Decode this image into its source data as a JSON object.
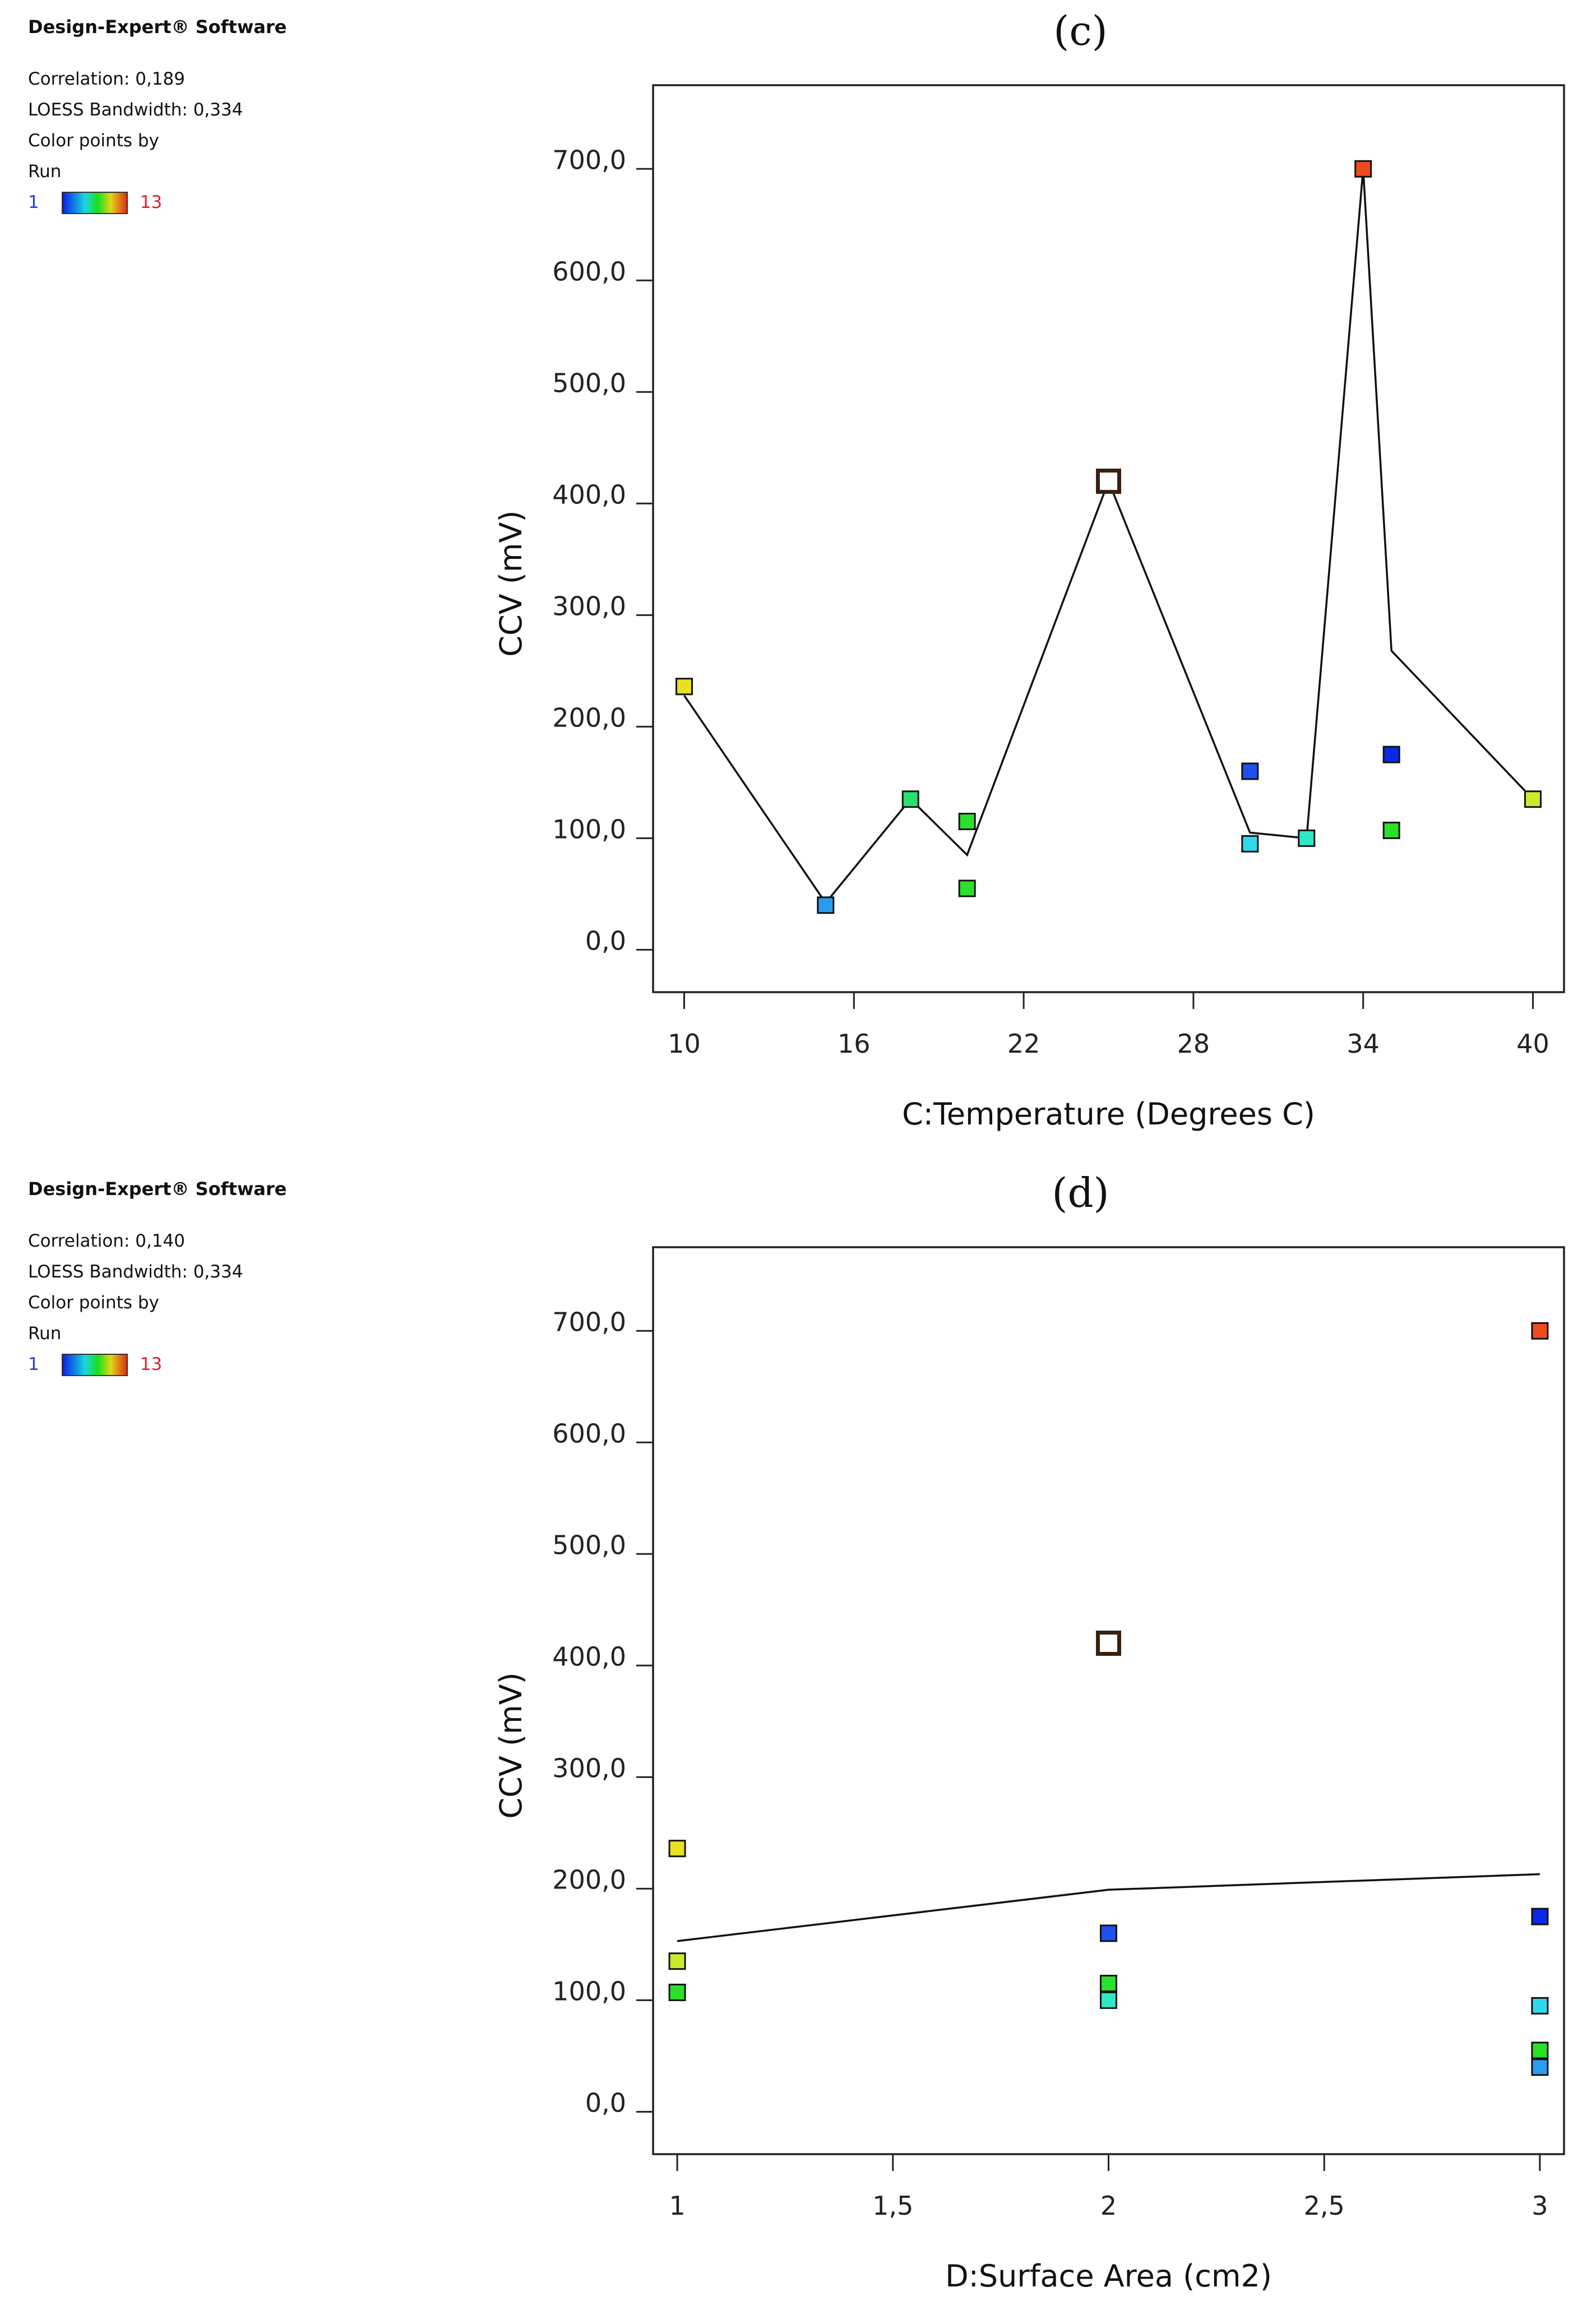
{
  "software_label": "Design-Expert® Software",
  "panels": [
    {
      "correlation": "Correlation: 0,189",
      "bandwidth": "LOESS Bandwidth: 0,334",
      "color_by": "Color points by",
      "color_var": "Run",
      "run_min": "1",
      "run_max": "13"
    },
    {
      "correlation": "Correlation: 0,140",
      "bandwidth": "LOESS Bandwidth: 0,334",
      "color_by": "Color points by",
      "color_var": "Run",
      "run_min": "1",
      "run_max": "13"
    }
  ],
  "chart_data": [
    {
      "type": "scatter",
      "title": "(c)",
      "xlabel": "C:Temperature (Degrees C)",
      "ylabel": "CCV (mV)",
      "xlim": [
        8.9,
        41.1
      ],
      "ylim": [
        -38,
        775
      ],
      "xticks": [
        10,
        16,
        22,
        28,
        34,
        40
      ],
      "xtick_labels": [
        "10",
        "16",
        "22",
        "28",
        "34",
        "40"
      ],
      "yticks": [
        0,
        100,
        200,
        300,
        400,
        500,
        600,
        700
      ],
      "ytick_labels": [
        "0,0",
        "100,0",
        "200,0",
        "300,0",
        "400,0",
        "500,0",
        "600,0",
        "700,0"
      ],
      "points": [
        {
          "x": 10,
          "y": 236,
          "color": "#e8e020"
        },
        {
          "x": 15,
          "y": 40,
          "color": "#2a9cf0"
        },
        {
          "x": 18,
          "y": 135,
          "color": "#28e070"
        },
        {
          "x": 20,
          "y": 115,
          "color": "#2ae02a"
        },
        {
          "x": 20,
          "y": 55,
          "color": "#2ae02a"
        },
        {
          "x": 25,
          "y": 420,
          "color": "#ffffff",
          "design_point": true
        },
        {
          "x": 30,
          "y": 160,
          "color": "#1e50f0"
        },
        {
          "x": 30,
          "y": 95,
          "color": "#30d8ee"
        },
        {
          "x": 32,
          "y": 100,
          "color": "#30e8c8"
        },
        {
          "x": 34,
          "y": 700,
          "color": "#f04a1c"
        },
        {
          "x": 35,
          "y": 175,
          "color": "#0a28e8"
        },
        {
          "x": 35,
          "y": 107,
          "color": "#2ae02a"
        },
        {
          "x": 40,
          "y": 135,
          "color": "#c8ec2a"
        }
      ],
      "loess": [
        {
          "x": 10,
          "y": 228
        },
        {
          "x": 15,
          "y": 42
        },
        {
          "x": 18,
          "y": 135
        },
        {
          "x": 20,
          "y": 85
        },
        {
          "x": 25,
          "y": 420
        },
        {
          "x": 30,
          "y": 105
        },
        {
          "x": 32,
          "y": 100
        },
        {
          "x": 34,
          "y": 700
        },
        {
          "x": 35,
          "y": 268
        },
        {
          "x": 40,
          "y": 135
        }
      ]
    },
    {
      "type": "scatter",
      "title": "(d)",
      "xlabel": "D:Surface Area (cm2)",
      "ylabel": "CCV (mV)",
      "xlim": [
        0.944,
        3.056
      ],
      "ylim": [
        -38,
        775
      ],
      "xticks": [
        1,
        1.5,
        2,
        2.5,
        3
      ],
      "xtick_labels": [
        "1",
        "1,5",
        "2",
        "2,5",
        "3"
      ],
      "yticks": [
        0,
        100,
        200,
        300,
        400,
        500,
        600,
        700
      ],
      "ytick_labels": [
        "0,0",
        "100,0",
        "200,0",
        "300,0",
        "400,0",
        "500,0",
        "600,0",
        "700,0"
      ],
      "points": [
        {
          "x": 1,
          "y": 236,
          "color": "#e8e020"
        },
        {
          "x": 1,
          "y": 135,
          "color": "#c8ec2a"
        },
        {
          "x": 1,
          "y": 107,
          "color": "#2ae02a"
        },
        {
          "x": 2,
          "y": 420,
          "color": "#ffffff",
          "design_point": true
        },
        {
          "x": 2,
          "y": 160,
          "color": "#1e50f0"
        },
        {
          "x": 2,
          "y": 115,
          "color": "#2ae02a"
        },
        {
          "x": 2,
          "y": 100,
          "color": "#30e8c8"
        },
        {
          "x": 3,
          "y": 700,
          "color": "#f04a1c"
        },
        {
          "x": 3,
          "y": 175,
          "color": "#0a28e8"
        },
        {
          "x": 3,
          "y": 95,
          "color": "#30d8ee"
        },
        {
          "x": 3,
          "y": 55,
          "color": "#2ae02a"
        },
        {
          "x": 3,
          "y": 40,
          "color": "#2a9cf0"
        }
      ],
      "loess": [
        {
          "x": 1,
          "y": 153
        },
        {
          "x": 2,
          "y": 199
        },
        {
          "x": 3,
          "y": 213
        }
      ]
    }
  ]
}
